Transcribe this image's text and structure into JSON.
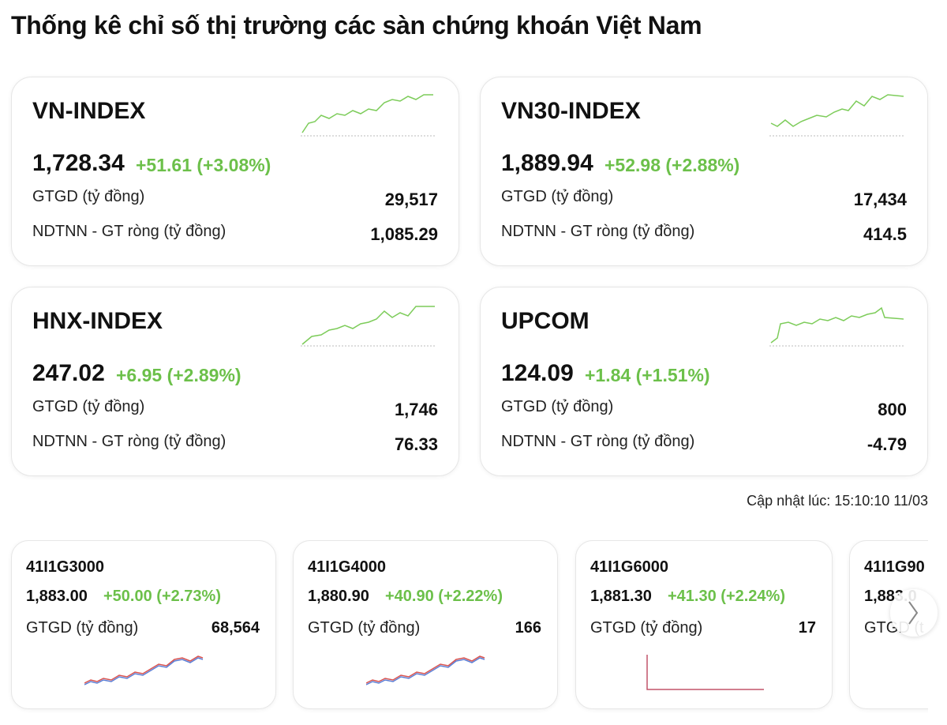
{
  "header": {
    "title": "Thống kê chỉ số thị trường các sàn chứng khoán Việt Nam"
  },
  "indices": [
    {
      "name": "VN-INDEX",
      "value": "1,728.34",
      "change": "+51.61 (+3.08%)",
      "volume_label": "GTGD (tỷ đồng)",
      "volume": "29,517",
      "foreign_label": "NDTNN - GT ròng (tỷ đồng)",
      "foreign": "1,085.29"
    },
    {
      "name": "VN30-INDEX",
      "value": "1,889.94",
      "change": "+52.98 (+2.88%)",
      "volume_label": "GTGD (tỷ đồng)",
      "volume": "17,434",
      "foreign_label": "NDTNN - GT ròng (tỷ đồng)",
      "foreign": "414.5"
    },
    {
      "name": "HNX-INDEX",
      "value": "247.02",
      "change": "+6.95 (+2.89%)",
      "volume_label": "GTGD (tỷ đồng)",
      "volume": "1,746",
      "foreign_label": "NDTNN - GT ròng (tỷ đồng)",
      "foreign": "76.33"
    },
    {
      "name": "UPCOM",
      "value": "124.09",
      "change": "+1.84 (+1.51%)",
      "volume_label": "GTGD (tỷ đồng)",
      "volume": "800",
      "foreign_label": "NDTNN - GT ròng (tỷ đồng)",
      "foreign": "-4.79"
    }
  ],
  "updated": "Cập nhật lúc: 15:10:10 11/03",
  "futures": [
    {
      "name": "41I1G3000",
      "value": "1,883.00",
      "change": "+50.00 (+2.73%)",
      "volume_label": "GTGD (tỷ đồng)",
      "volume": "68,564"
    },
    {
      "name": "41I1G4000",
      "value": "1,880.90",
      "change": "+40.90 (+2.22%)",
      "volume_label": "GTGD (tỷ đồng)",
      "volume": "166"
    },
    {
      "name": "41I1G6000",
      "value": "1,881.30",
      "change": "+41.30 (+2.24%)",
      "volume_label": "GTGD (tỷ đồng)",
      "volume": "17"
    },
    {
      "name": "41I1G90",
      "value": "1,883.0",
      "volume_label": "GTGD (t"
    }
  ]
}
